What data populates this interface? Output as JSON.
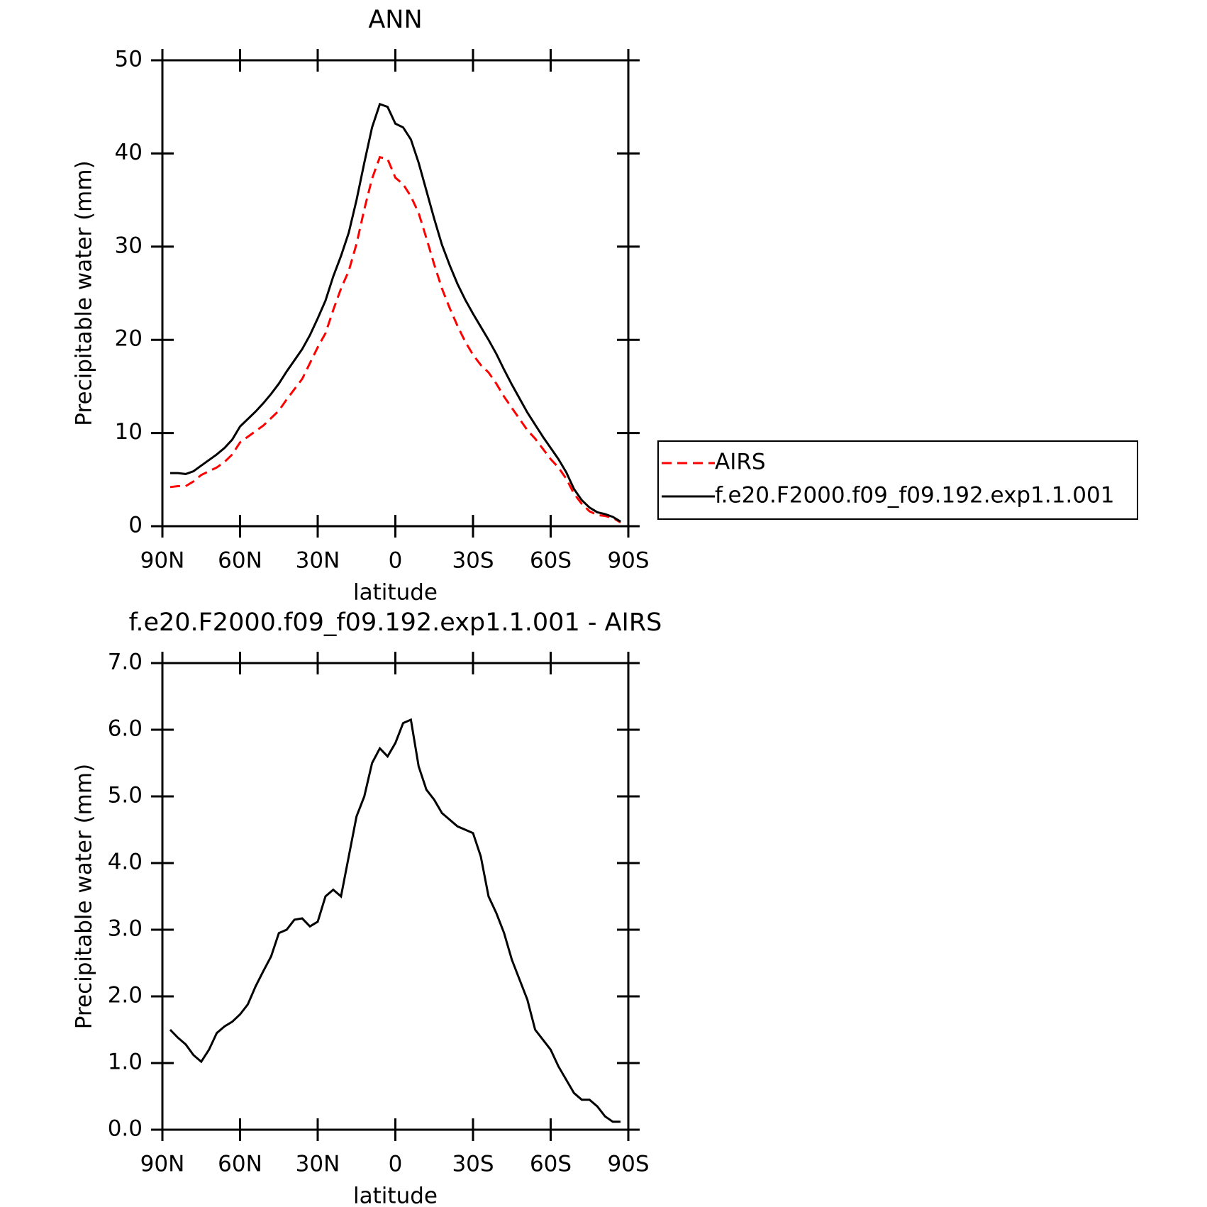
{
  "chart_data": [
    {
      "type": "line",
      "title": "ANN",
      "xlabel": "latitude",
      "ylabel": "Precipitable water (mm)",
      "x": [
        87,
        84,
        81,
        78,
        75,
        72,
        69,
        66,
        63,
        60,
        57,
        54,
        51,
        48,
        45,
        42,
        39,
        36,
        33,
        30,
        27,
        24,
        21,
        18,
        15,
        12,
        9,
        6,
        3,
        0,
        -3,
        -6,
        -9,
        -12,
        -15,
        -18,
        -21,
        -24,
        -27,
        -30,
        -33,
        -36,
        -39,
        -42,
        -45,
        -48,
        -51,
        -54,
        -57,
        -60,
        -63,
        -66,
        -69,
        -72,
        -75,
        -78,
        -81,
        -84,
        -87
      ],
      "xlim": [
        90,
        -90
      ],
      "xticks": [
        {
          "value": 90,
          "label": "90N"
        },
        {
          "value": 60,
          "label": "60N"
        },
        {
          "value": 30,
          "label": "30N"
        },
        0,
        {
          "value": -30,
          "label": "30S"
        },
        {
          "value": -60,
          "label": "60S"
        },
        {
          "value": -90,
          "label": "90S"
        }
      ],
      "ylim": [
        0,
        50
      ],
      "yticks": [
        0,
        10,
        20,
        30,
        40,
        50
      ],
      "legend": "right",
      "series": [
        {
          "name": "AIRS",
          "color": "#ff0000",
          "dash": true,
          "values": [
            4.2,
            4.3,
            4.3,
            4.8,
            5.5,
            5.9,
            6.3,
            6.9,
            7.7,
            9.0,
            9.6,
            10.2,
            10.8,
            11.6,
            12.4,
            13.6,
            14.7,
            15.8,
            17.5,
            19.2,
            20.7,
            23.2,
            25.5,
            27.4,
            30.3,
            34.0,
            37.3,
            39.6,
            39.4,
            37.4,
            36.7,
            35.4,
            33.6,
            30.9,
            28.1,
            25.5,
            23.4,
            21.5,
            19.8,
            18.4,
            17.3,
            16.5,
            15.3,
            13.9,
            12.7,
            11.5,
            10.3,
            9.4,
            8.3,
            7.2,
            6.3,
            5.1,
            3.5,
            2.4,
            1.6,
            1.2,
            1.1,
            0.9,
            0.4
          ]
        },
        {
          "name": "f.e20.F2000.f09_f09.192.exp1.1.001",
          "color": "#000000",
          "dash": false,
          "values": [
            5.7,
            5.7,
            5.6,
            5.9,
            6.5,
            7.1,
            7.7,
            8.4,
            9.3,
            10.7,
            11.5,
            12.3,
            13.2,
            14.2,
            15.3,
            16.6,
            17.8,
            19.0,
            20.5,
            22.3,
            24.2,
            26.8,
            29.0,
            31.5,
            35.0,
            39.0,
            42.8,
            45.3,
            45.0,
            43.2,
            42.8,
            41.5,
            39.0,
            36.0,
            33.0,
            30.2,
            28.0,
            26.0,
            24.3,
            22.8,
            21.4,
            20.0,
            18.5,
            16.8,
            15.2,
            13.7,
            12.2,
            10.9,
            9.6,
            8.4,
            7.2,
            5.8,
            4.0,
            2.8,
            2.0,
            1.5,
            1.3,
            1.0,
            0.5
          ]
        }
      ]
    },
    {
      "type": "line",
      "title": "f.e20.F2000.f09_f09.192.exp1.1.001 - AIRS",
      "xlabel": "latitude",
      "ylabel": "Precipitable water (mm)",
      "x": [
        87,
        84,
        81,
        78,
        75,
        72,
        69,
        66,
        63,
        60,
        57,
        54,
        51,
        48,
        45,
        42,
        39,
        36,
        33,
        30,
        27,
        24,
        21,
        18,
        15,
        12,
        9,
        6,
        3,
        0,
        -3,
        -6,
        -9,
        -12,
        -15,
        -18,
        -21,
        -24,
        -27,
        -30,
        -33,
        -36,
        -39,
        -42,
        -45,
        -48,
        -51,
        -54,
        -57,
        -60,
        -63,
        -66,
        -69,
        -72,
        -75,
        -78,
        -81,
        -84,
        -87
      ],
      "xlim": [
        90,
        -90
      ],
      "xticks": [
        {
          "value": 90,
          "label": "90N"
        },
        {
          "value": 60,
          "label": "60N"
        },
        {
          "value": 30,
          "label": "30N"
        },
        0,
        {
          "value": -30,
          "label": "30S"
        },
        {
          "value": -60,
          "label": "60S"
        },
        {
          "value": -90,
          "label": "90S"
        }
      ],
      "ylim": [
        0,
        7
      ],
      "yticks": [
        {
          "value": 0,
          "label": "0.0"
        },
        {
          "value": 1,
          "label": "1.0"
        },
        {
          "value": 2,
          "label": "2.0"
        },
        {
          "value": 3,
          "label": "3.0"
        },
        {
          "value": 4,
          "label": "4.0"
        },
        {
          "value": 5,
          "label": "5.0"
        },
        {
          "value": 6,
          "label": "6.0"
        },
        {
          "value": 7,
          "label": "7.0"
        }
      ],
      "series": [
        {
          "color": "#000000",
          "dash": false,
          "values": [
            1.5,
            1.38,
            1.28,
            1.12,
            1.02,
            1.2,
            1.45,
            1.55,
            1.62,
            1.73,
            1.88,
            2.15,
            2.38,
            2.6,
            2.95,
            3.0,
            3.15,
            3.17,
            3.05,
            3.12,
            3.5,
            3.6,
            3.5,
            4.1,
            4.7,
            5.0,
            5.5,
            5.72,
            5.6,
            5.8,
            6.1,
            6.15,
            5.45,
            5.1,
            4.95,
            4.75,
            4.65,
            4.55,
            4.5,
            4.45,
            4.1,
            3.5,
            3.25,
            2.95,
            2.55,
            2.25,
            1.95,
            1.5,
            1.35,
            1.2,
            0.95,
            0.75,
            0.55,
            0.45,
            0.45,
            0.35,
            0.2,
            0.12,
            0.12
          ]
        }
      ]
    }
  ]
}
